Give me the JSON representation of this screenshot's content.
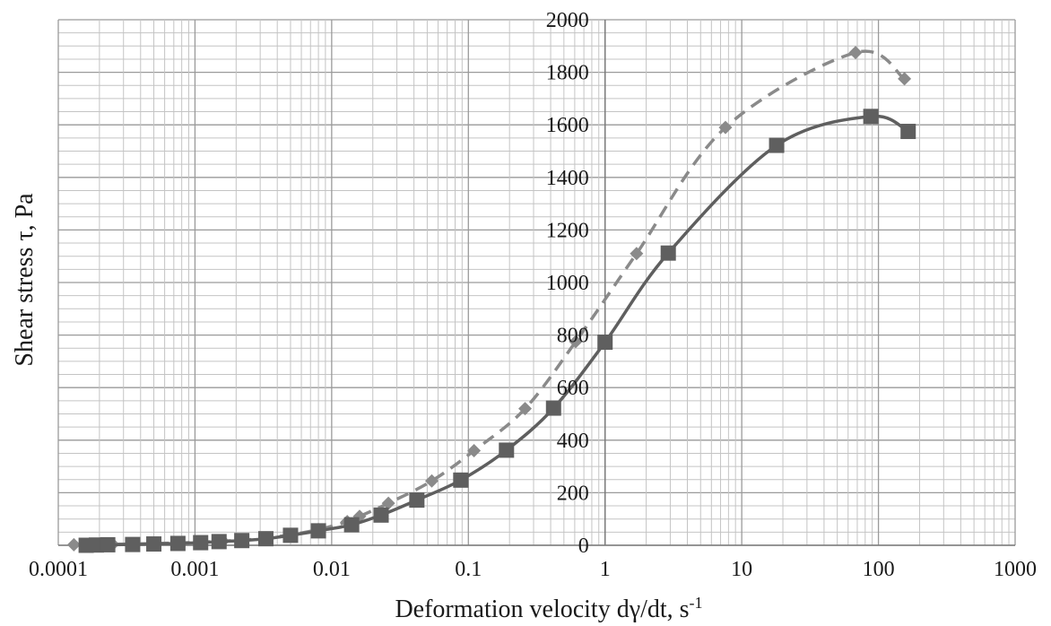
{
  "chart_data": {
    "type": "line",
    "xlabel": "Deformation velocity dγ/dt, s",
    "xlabel_superscript": "-1",
    "ylabel": "Shear stress τ, Pa",
    "x_scale": "log",
    "xlim": [
      0.0001,
      1000
    ],
    "ylim": [
      0,
      2000
    ],
    "x_tick_labels": [
      "0.0001",
      "0.001",
      "0.01",
      "0.1",
      "1",
      "10",
      "100",
      "1000"
    ],
    "y_tick_labels": [
      "0",
      "200",
      "400",
      "600",
      "800",
      "1000",
      "1200",
      "1400",
      "1600",
      "1800",
      "2000"
    ],
    "grid": true,
    "legend": "none",
    "series": [
      {
        "style": "solid",
        "marker": "square",
        "color": "#5f5f5f",
        "x": [
          0.00016,
          0.00019,
          0.00023,
          0.00035,
          0.0005,
          0.00075,
          0.0011,
          0.0015,
          0.0022,
          0.0033,
          0.005,
          0.008,
          0.014,
          0.023,
          0.042,
          0.088,
          0.19,
          0.42,
          1.0,
          2.9,
          18,
          88,
          165
        ],
        "y": [
          0,
          1,
          2,
          3,
          5,
          7,
          10,
          14,
          18,
          25,
          38,
          55,
          78,
          115,
          172,
          248,
          362,
          522,
          773,
          1112,
          1522,
          1632,
          1575
        ]
      },
      {
        "style": "dashed",
        "marker": "diamond",
        "color": "#8a8a8a",
        "x": [
          0.00013,
          0.00016,
          0.0002,
          0.00025,
          0.00035,
          0.0005,
          0.00075,
          0.0011,
          0.0016,
          0.0023,
          0.0033,
          0.005,
          0.008,
          0.013,
          0.016,
          0.026,
          0.054,
          0.11,
          0.26,
          0.61,
          1.7,
          7.6,
          68,
          155
        ],
        "y": [
          2,
          2,
          3,
          4,
          5,
          7,
          9,
          12,
          16,
          20,
          28,
          40,
          60,
          90,
          110,
          160,
          245,
          360,
          520,
          775,
          1110,
          1590,
          1875,
          1775
        ]
      }
    ]
  }
}
